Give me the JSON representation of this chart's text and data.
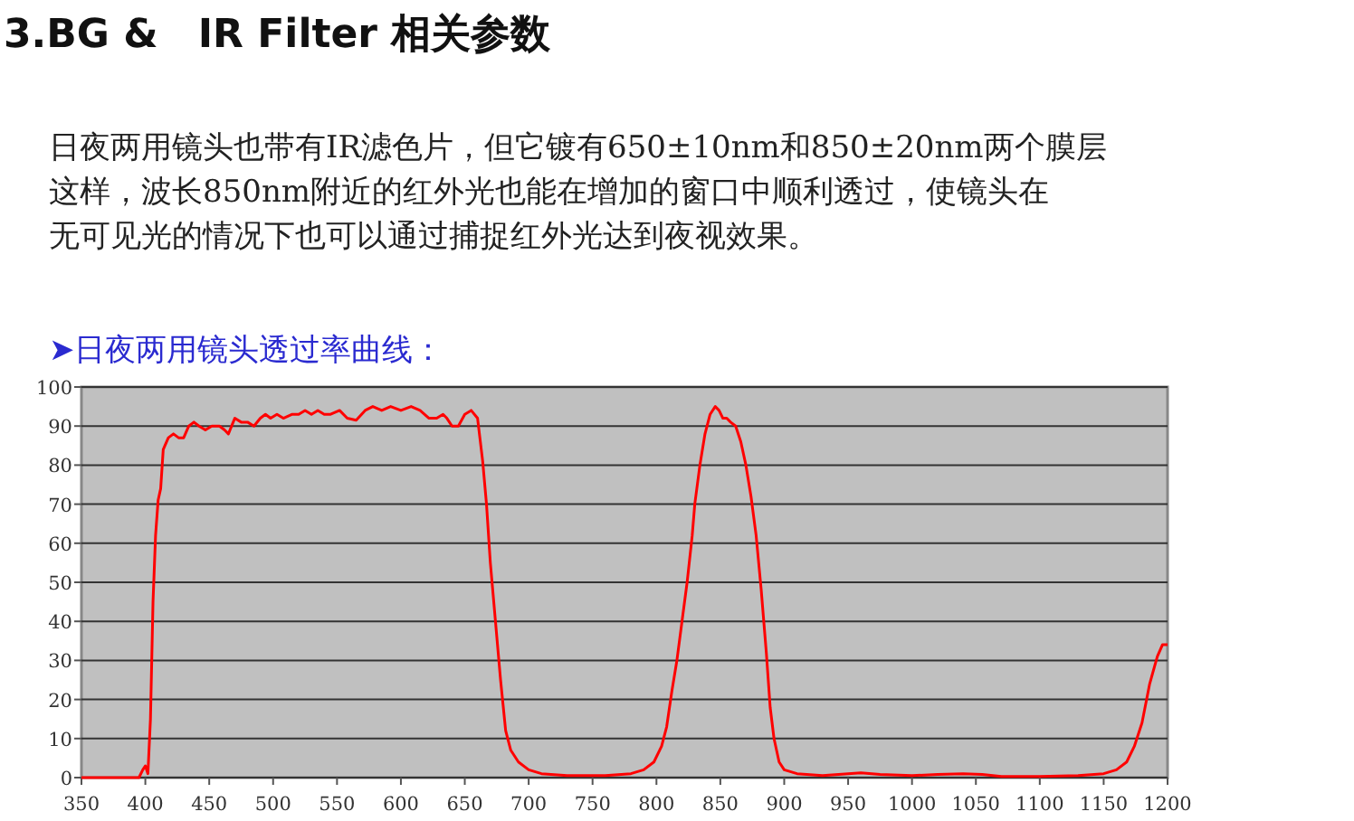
{
  "chart_data": {
    "type": "line",
    "title": "3.BG &　IR Filter 相关参数",
    "annotations": [
      "日夜两用镜头也带有IR滤色片，但它镀有650±10nm和850±20nm两个膜层",
      "这样，波长850nm附近的红外光也能在增加的窗口中顺利透过，使镜头在",
      "无可见光的情况下也可以通过捕捉红外光达到夜视效果。"
    ],
    "subtitle": "➤日夜两用镜头透过率曲线：",
    "x": [
      350,
      395,
      398,
      400,
      402,
      404,
      406,
      408,
      410,
      412,
      414,
      418,
      422,
      426,
      430,
      434,
      438,
      442,
      447,
      452,
      458,
      462,
      465,
      470,
      475,
      480,
      485,
      490,
      494,
      498,
      503,
      508,
      515,
      520,
      525,
      530,
      535,
      540,
      545,
      552,
      558,
      565,
      572,
      578,
      585,
      592,
      600,
      608,
      615,
      622,
      628,
      633,
      636,
      640,
      645,
      650,
      655,
      660,
      664,
      667,
      670,
      674,
      678,
      682,
      686,
      692,
      700,
      710,
      730,
      760,
      780,
      790,
      798,
      804,
      808,
      812,
      816,
      820,
      824,
      828,
      830,
      834,
      838,
      842,
      846,
      849,
      852,
      855,
      858,
      862,
      866,
      870,
      874,
      878,
      882,
      886,
      889,
      892,
      896,
      900,
      910,
      930,
      950,
      960,
      975,
      1000,
      1020,
      1040,
      1055,
      1070,
      1100,
      1130,
      1150,
      1160,
      1168,
      1174,
      1180,
      1186,
      1192,
      1196,
      1200
    ],
    "values": [
      0,
      0,
      2,
      3,
      1,
      15,
      45,
      62,
      71,
      74,
      84,
      87,
      88,
      87,
      87,
      90,
      91,
      90,
      89,
      90,
      90,
      89,
      88,
      92,
      91,
      91,
      90,
      92,
      93,
      92,
      93,
      92,
      93,
      93,
      94,
      93,
      94,
      93,
      93,
      94,
      92,
      91.5,
      94,
      95,
      94,
      95,
      94,
      95,
      94,
      92,
      92,
      93,
      92,
      90,
      90,
      93,
      94,
      92,
      81,
      70,
      55,
      40,
      25,
      12,
      7,
      4,
      2,
      1,
      0.5,
      0.5,
      1,
      2,
      4,
      8,
      13,
      22,
      30,
      40,
      50,
      62,
      70,
      80,
      88,
      93,
      95,
      94,
      92,
      92,
      91,
      90,
      86,
      80,
      72,
      62,
      48,
      32,
      18,
      10,
      4,
      2,
      1,
      0.5,
      1,
      1.2,
      0.8,
      0.5,
      0.8,
      1,
      0.8,
      0.3,
      0.3,
      0.5,
      1,
      2,
      4,
      8,
      14,
      24,
      31,
      34,
      34
    ],
    "color": "#ff0000",
    "xlim": [
      350,
      1200
    ],
    "ylim": [
      0,
      100
    ],
    "xticks": [
      350,
      400,
      450,
      500,
      550,
      600,
      650,
      700,
      750,
      800,
      850,
      900,
      950,
      1000,
      1050,
      1100,
      1150,
      1200
    ],
    "yticks": [
      0,
      10,
      20,
      30,
      40,
      50,
      60,
      70,
      80,
      90,
      100
    ],
    "grid": "y"
  }
}
